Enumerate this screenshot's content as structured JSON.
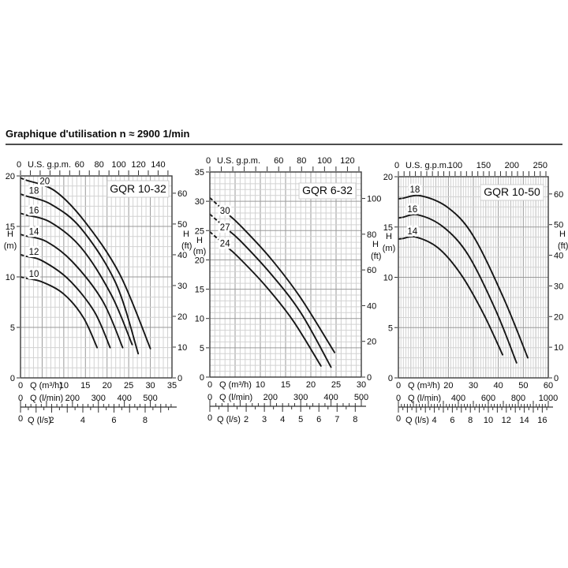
{
  "header": {
    "title": "Graphique d'utilisation n ≈ 2900 1/min"
  },
  "chart_data": [
    {
      "type": "line",
      "name": "GQR 10-32",
      "x_max_m3h": 35,
      "y_max_m": 20,
      "grid": {
        "minor_q": 1,
        "major_q": 5,
        "minor_m": 1,
        "major_m": 5
      },
      "gpm_axis": {
        "label": "U.S. g.p.m.",
        "zero": "0",
        "ticks": [
          60,
          80,
          100,
          120,
          140
        ]
      },
      "left_axis": {
        "head": "H",
        "unit": "(m)",
        "ticks": [
          20,
          15,
          10,
          5,
          0
        ]
      },
      "right_axis": {
        "head": "H",
        "unit": "(ft)",
        "ticks": [
          60,
          50,
          40,
          30,
          20,
          10,
          0
        ]
      },
      "m3h_axis": {
        "label": "Q (m³/h)",
        "zero": "0",
        "ticks": [
          10,
          15,
          20,
          25,
          30,
          35
        ]
      },
      "lmin_axis": {
        "label": "Q (l/min)",
        "zero": "0",
        "ticks": [
          200,
          300,
          400,
          500
        ]
      },
      "ls_axis": {
        "label": "Q (l/s)",
        "zero": "0",
        "ticks": [
          2,
          4,
          6,
          8
        ]
      },
      "curves": [
        {
          "label": "20",
          "dash_to": 1.4,
          "label_at": [
            5.6,
            19.5
          ],
          "points": [
            [
              0,
              19.8
            ],
            [
              8,
              18.5
            ],
            [
              15,
              15.4
            ],
            [
              23,
              10.2
            ],
            [
              30,
              2.9
            ]
          ]
        },
        {
          "label": "18",
          "dash_to": 1.4,
          "label_at": [
            3.1,
            18.55
          ],
          "points": [
            [
              0,
              18.2
            ],
            [
              7,
              17.2
            ],
            [
              14,
              14.8
            ],
            [
              22,
              9.4
            ],
            [
              27.2,
              2.4
            ]
          ]
        },
        {
          "label": "16",
          "dash_to": 1.4,
          "label_at": [
            3.1,
            16.6
          ],
          "points": [
            [
              0,
              16.3
            ],
            [
              7,
              15.4
            ],
            [
              14,
              12.9
            ],
            [
              21,
              8.2
            ],
            [
              25.8,
              3.3
            ]
          ]
        },
        {
          "label": "14",
          "dash_to": 1.4,
          "label_at": [
            3.1,
            14.5
          ],
          "points": [
            [
              0,
              14.2
            ],
            [
              6,
              13.5
            ],
            [
              12,
              11.5
            ],
            [
              19,
              7.6
            ],
            [
              23.6,
              3.0
            ]
          ]
        },
        {
          "label": "12",
          "dash_to": 1.4,
          "label_at": [
            3.1,
            12.5
          ],
          "points": [
            [
              0,
              12.2
            ],
            [
              5,
              11.6
            ],
            [
              11,
              9.8
            ],
            [
              17,
              6.6
            ],
            [
              20.7,
              3.0
            ]
          ]
        },
        {
          "label": "10",
          "dash_to": 1.4,
          "label_at": [
            3.1,
            10.3
          ],
          "points": [
            [
              0,
              10.0
            ],
            [
              5,
              9.5
            ],
            [
              10,
              8.3
            ],
            [
              14.5,
              6.0
            ],
            [
              17.7,
              3.0
            ]
          ]
        }
      ]
    },
    {
      "type": "line",
      "name": "GQR 6-32",
      "x_max_m3h": 30,
      "y_max_m": 35,
      "grid": {
        "minor_q": 1,
        "major_q": 5,
        "minor_m": 1,
        "major_m": 5
      },
      "gpm_axis": {
        "label": "U.S. g.p.m.",
        "zero": "0",
        "ticks": [
          60,
          80,
          100,
          120
        ]
      },
      "left_axis": {
        "head": "H",
        "unit": "(m)",
        "ticks": [
          35,
          30,
          25,
          20,
          15,
          10,
          5,
          0
        ]
      },
      "right_axis": {
        "head": "H",
        "unit": "(ft)",
        "ticks": [
          100,
          80,
          60,
          40,
          20,
          0
        ]
      },
      "m3h_axis": {
        "label": "Q (m³/h)",
        "zero": "0",
        "ticks": [
          10,
          15,
          20,
          25,
          30
        ]
      },
      "lmin_axis": {
        "label": "Q (l/min)",
        "zero": "0",
        "ticks": [
          200,
          300,
          400,
          500
        ]
      },
      "ls_axis": {
        "label": "Q (l/s)",
        "zero": "0",
        "ticks": [
          2,
          3,
          4,
          5,
          6,
          7,
          8
        ]
      },
      "curves": [
        {
          "label": "30",
          "dash_to": 3.3,
          "label_at": [
            3.0,
            28.4
          ],
          "points": [
            [
              0,
              30.6
            ],
            [
              6,
              25.9
            ],
            [
              12,
              20.3
            ],
            [
              18,
              13.5
            ],
            [
              24.7,
              4.2
            ]
          ]
        },
        {
          "label": "27",
          "dash_to": 3.3,
          "label_at": [
            3.0,
            25.6
          ],
          "points": [
            [
              0,
              27.8
            ],
            [
              6,
              23.3
            ],
            [
              12,
              17.7
            ],
            [
              18,
              11.0
            ],
            [
              24,
              1.7
            ]
          ]
        },
        {
          "label": "24",
          "dash_to": 3.3,
          "label_at": [
            3.0,
            22.8
          ],
          "points": [
            [
              0,
              24.8
            ],
            [
              5.5,
              20.6
            ],
            [
              11,
              15.6
            ],
            [
              16.5,
              9.6
            ],
            [
              22,
              1.9
            ]
          ]
        }
      ]
    },
    {
      "type": "line",
      "name": "GQR 10-50",
      "x_max_m3h": 60,
      "y_max_m": 20,
      "grid": {
        "minor_q": 1,
        "major_q": 10,
        "minor_m": 1,
        "major_m": 5
      },
      "gpm_axis": {
        "label": "U.S. g.p.m.",
        "zero": "0",
        "ticks": [
          100,
          150,
          200,
          250
        ]
      },
      "left_axis": {
        "head": "H",
        "unit": "(m)",
        "ticks": [
          20,
          15,
          10,
          5,
          0
        ]
      },
      "right_axis": {
        "head": "H",
        "unit": "(ft)",
        "ticks": [
          60,
          50,
          40,
          30,
          20,
          10,
          0
        ]
      },
      "m3h_axis": {
        "label": "Q (m³/h)",
        "zero": "0",
        "ticks": [
          20,
          30,
          40,
          50,
          60
        ]
      },
      "lmin_axis": {
        "label": "Q (l/min)",
        "zero": "0",
        "ticks": [
          400,
          600,
          800,
          1000
        ]
      },
      "ls_axis": {
        "label": "Q (l/s)",
        "zero": "0",
        "ticks": [
          4,
          6,
          8,
          10,
          12,
          14,
          16
        ]
      },
      "curves": [
        {
          "label": "18",
          "dash_to": 1.8,
          "label_at": [
            6.6,
            18.75
          ],
          "points": [
            [
              0,
              17.8
            ],
            [
              9,
              18.1
            ],
            [
              20,
              16.9
            ],
            [
              30,
              14.1
            ],
            [
              42,
              8.0
            ],
            [
              51.8,
              2.0
            ]
          ]
        },
        {
          "label": "16",
          "dash_to": 1.8,
          "label_at": [
            5.6,
            16.8
          ],
          "points": [
            [
              0,
              15.9
            ],
            [
              8,
              16.2
            ],
            [
              18,
              15.0
            ],
            [
              28,
              12.2
            ],
            [
              39,
              6.7
            ],
            [
              47.3,
              1.5
            ]
          ]
        },
        {
          "label": "14",
          "dash_to": 1.8,
          "label_at": [
            5.6,
            14.6
          ],
          "points": [
            [
              0,
              13.8
            ],
            [
              7,
              14.0
            ],
            [
              16,
              12.9
            ],
            [
              25,
              10.3
            ],
            [
              34,
              6.4
            ],
            [
              41.7,
              2.3
            ]
          ]
        }
      ]
    }
  ],
  "colors": {
    "curve": "#161616",
    "grid_minor": "#d2d2d2",
    "grid_semi": "#bcbcbc",
    "grid_major": "#9a9a9a",
    "border": "#3c3c3c",
    "text": "#0a0a0a"
  }
}
